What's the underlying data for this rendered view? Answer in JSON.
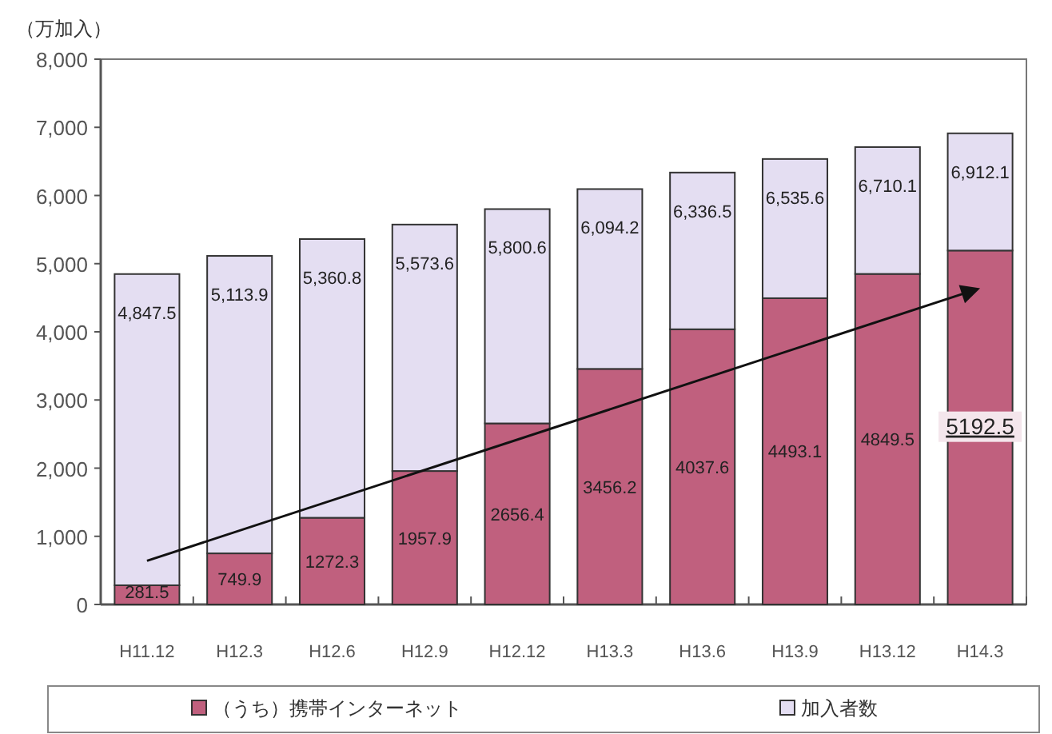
{
  "chart_data": {
    "type": "bar",
    "stacked": true,
    "ylabel": "（万加入）",
    "categories": [
      "H11.12",
      "H12.3",
      "H12.6",
      "H12.9",
      "H12.12",
      "H13.3",
      "H13.6",
      "H13.9",
      "H13.12",
      "H14.3"
    ],
    "series": [
      {
        "name": "（うち）携帯インターネット",
        "color": "#c0607e",
        "values": [
          281.5,
          749.9,
          1272.3,
          1957.9,
          2656.4,
          3456.2,
          4037.6,
          4493.1,
          4849.5,
          5192.5
        ],
        "value_labels": [
          "281.5",
          "749.9",
          "1272.3",
          "1957.9",
          "2656.4",
          "3456.2",
          "4037.6",
          "4493.1",
          "4849.5",
          "5192.5"
        ]
      },
      {
        "name": "加入者数",
        "color": "#e4def2",
        "values": [
          4566.0,
          4364.0,
          4088.5,
          3615.7,
          3144.2,
          2638.0,
          2298.9,
          2042.5,
          1860.6,
          1719.6
        ]
      }
    ],
    "totals": [
      "4,847.5",
      "5,113.9",
      "5,360.8",
      "5,573.6",
      "5,800.6",
      "6,094.2",
      "6,336.5",
      "6,535.6",
      "6,710.1",
      "6,912.1"
    ],
    "ylim": [
      0,
      8000
    ],
    "yticks": [
      0,
      {
        "value": 1000,
        "label": "1,000"
      },
      {
        "value": 2000,
        "label": "2,000"
      },
      {
        "value": 3000,
        "label": "3,000"
      },
      {
        "value": 4000,
        "label": "4,000"
      },
      {
        "value": 5000,
        "label": "5,000"
      },
      {
        "value": 6000,
        "label": "6,000"
      },
      {
        "value": 7000,
        "label": "7,000"
      },
      {
        "value": 8000,
        "label": "8,000"
      }
    ],
    "grid": false,
    "legend": "bottom"
  }
}
